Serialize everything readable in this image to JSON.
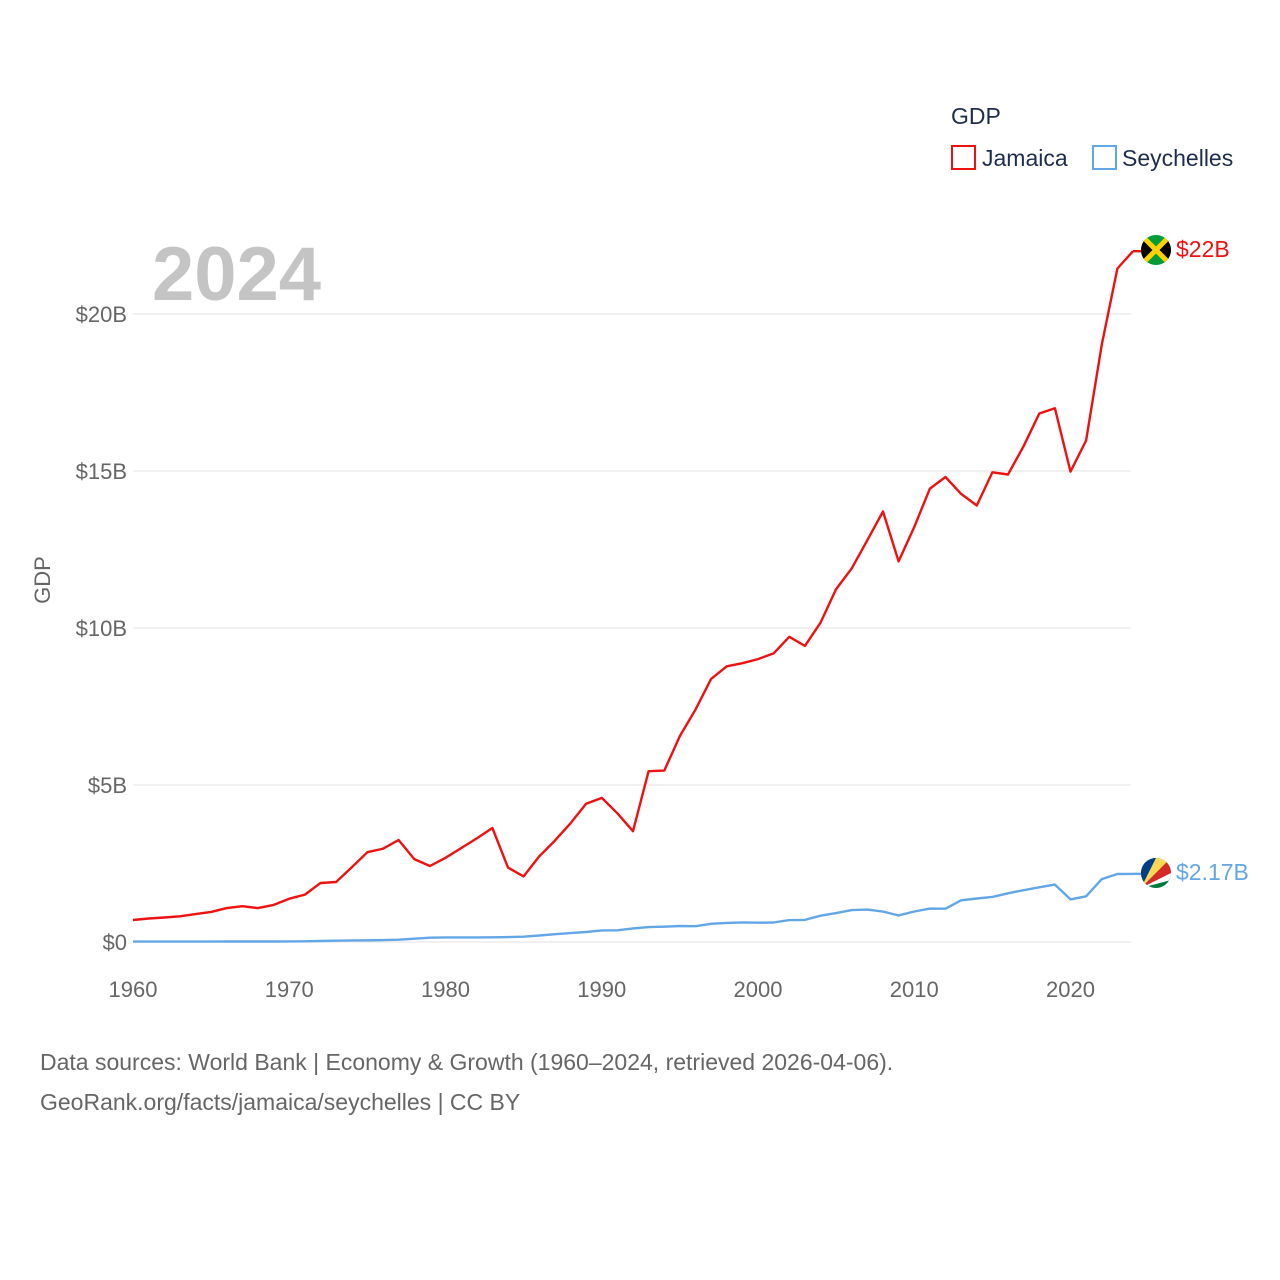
{
  "chart_data": {
    "type": "line",
    "year_label": "2024",
    "ylabel": "GDP",
    "xlim": [
      1960,
      2024
    ],
    "ylim": [
      0,
      20000000000
    ],
    "y_ticks": [
      {
        "value": 0,
        "label": "$0"
      },
      {
        "value": 5000000000,
        "label": "$5B"
      },
      {
        "value": 10000000000,
        "label": "$10B"
      },
      {
        "value": 15000000000,
        "label": "$15B"
      },
      {
        "value": 20000000000,
        "label": "$20B"
      }
    ],
    "x_ticks": [
      {
        "value": 1960,
        "label": "1960"
      },
      {
        "value": 1970,
        "label": "1970"
      },
      {
        "value": 1980,
        "label": "1980"
      },
      {
        "value": 1990,
        "label": "1990"
      },
      {
        "value": 2000,
        "label": "2000"
      },
      {
        "value": 2010,
        "label": "2010"
      },
      {
        "value": 2020,
        "label": "2020"
      }
    ],
    "legend": {
      "title": "GDP",
      "placement": "top-right"
    },
    "x": [
      1960,
      1961,
      1962,
      1963,
      1964,
      1965,
      1966,
      1967,
      1968,
      1969,
      1970,
      1971,
      1972,
      1973,
      1974,
      1975,
      1976,
      1977,
      1978,
      1979,
      1980,
      1981,
      1982,
      1983,
      1984,
      1985,
      1986,
      1987,
      1988,
      1989,
      1990,
      1991,
      1992,
      1993,
      1994,
      1995,
      1996,
      1997,
      1998,
      1999,
      2000,
      2001,
      2002,
      2003,
      2004,
      2005,
      2006,
      2007,
      2008,
      2009,
      2010,
      2011,
      2012,
      2013,
      2014,
      2015,
      2016,
      2017,
      2018,
      2019,
      2020,
      2021,
      2022,
      2023,
      2024
    ],
    "series": [
      {
        "name": "Jamaica",
        "color": "#ee1111",
        "end_label": "$22B",
        "flag": "jamaica-flag",
        "values": [
          0.7,
          0.75,
          0.78,
          0.82,
          0.89,
          0.96,
          1.08,
          1.14,
          1.08,
          1.18,
          1.38,
          1.51,
          1.88,
          1.91,
          2.38,
          2.86,
          2.97,
          3.25,
          2.64,
          2.42,
          2.68,
          2.99,
          3.3,
          3.63,
          2.37,
          2.09,
          2.73,
          3.23,
          3.78,
          4.4,
          4.59,
          4.1,
          3.53,
          5.44,
          5.46,
          6.56,
          7.4,
          8.38,
          8.78,
          8.88,
          9.01,
          9.19,
          9.72,
          9.43,
          10.17,
          11.24,
          11.9,
          12.8,
          13.71,
          12.12,
          13.22,
          14.44,
          14.81,
          14.27,
          13.9,
          14.96,
          14.89,
          15.79,
          16.83,
          17.0,
          14.98,
          15.97,
          19.03,
          21.45,
          22.0
        ]
      },
      {
        "name": "Seychelles",
        "color": "#63a6e6",
        "end_label": "$2.17B",
        "flag": "seychelles-flag",
        "values": [
          0.012,
          0.012,
          0.013,
          0.013,
          0.013,
          0.014,
          0.015,
          0.015,
          0.016,
          0.016,
          0.018,
          0.022,
          0.032,
          0.04,
          0.05,
          0.054,
          0.062,
          0.074,
          0.104,
          0.137,
          0.147,
          0.147,
          0.147,
          0.149,
          0.157,
          0.169,
          0.207,
          0.249,
          0.285,
          0.318,
          0.369,
          0.374,
          0.433,
          0.474,
          0.487,
          0.508,
          0.504,
          0.58,
          0.609,
          0.623,
          0.615,
          0.622,
          0.698,
          0.705,
          0.839,
          0.919,
          1.016,
          1.033,
          0.967,
          0.847,
          0.97,
          1.065,
          1.06,
          1.328,
          1.384,
          1.436,
          1.551,
          1.649,
          1.742,
          1.827,
          1.358,
          1.454,
          2.004,
          2.165,
          2.17
        ]
      }
    ],
    "value_scale": 1000000000
  },
  "footer": {
    "line1": "Data sources: World Bank | Economy & Growth (1960–2024, retrieved 2026-04-06).",
    "line2": "GeoRank.org/facts/jamaica/seychelles | CC BY"
  }
}
